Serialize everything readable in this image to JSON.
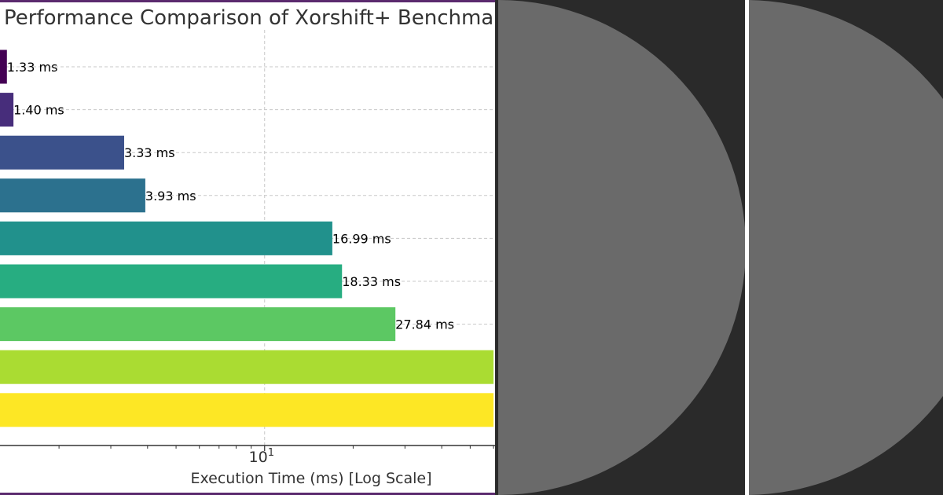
{
  "chart_data": {
    "type": "bar",
    "orientation": "horizontal",
    "title": "Performance Comparison of Xorshift+ Benchmark",
    "xlabel": "Execution Time (ms) [Log Scale]",
    "ylabel": "",
    "x_scale": "log",
    "xlim": [
      1.26,
      60
    ],
    "grid": true,
    "tick_labels": [
      {
        "value": 10,
        "base": "10",
        "exp": "1"
      }
    ],
    "value_suffix": " ms",
    "values": [
      1.33,
      1.4,
      3.33,
      3.93,
      16.99,
      18.33,
      27.84,
      60,
      60
    ],
    "data_labels": [
      "1.33 ms",
      "1.40 ms",
      "3.33 ms",
      "3.93 ms",
      "16.99 ms",
      "18.33 ms",
      "27.84 ms",
      "",
      ""
    ],
    "colors": [
      "#440154",
      "#472d7b",
      "#3b518b",
      "#2c718e",
      "#21918c",
      "#27ad81",
      "#5cc863",
      "#aadc32",
      "#fde725"
    ]
  },
  "theme": {
    "frame_color": "#5b2a6e",
    "thumb_disc_color": "#6a6a6a"
  }
}
